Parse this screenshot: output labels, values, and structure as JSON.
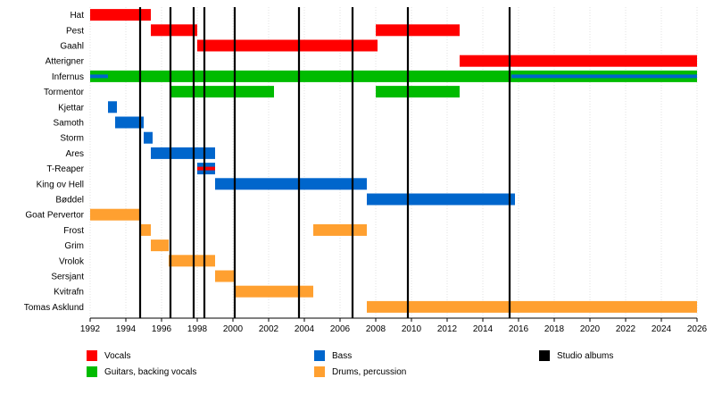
{
  "chart_data": {
    "type": "timeline",
    "x_range": [
      1992,
      2026
    ],
    "x_ticks": [
      1992,
      1994,
      1996,
      1998,
      2000,
      2002,
      2004,
      2006,
      2008,
      2010,
      2012,
      2014,
      2016,
      2018,
      2020,
      2022,
      2024,
      2026
    ],
    "colors": {
      "vocals": "#ff0000",
      "guitars": "#00bb00",
      "bass": "#0066cc",
      "drums": "#ffa030",
      "albums": "#000000"
    },
    "members": [
      {
        "name": "Hat",
        "periods": [
          {
            "role": "vocals",
            "start": 1992.0,
            "end": 1995.4
          }
        ]
      },
      {
        "name": "Pest",
        "periods": [
          {
            "role": "vocals",
            "start": 1995.4,
            "end": 1998.0
          },
          {
            "role": "vocals",
            "start": 2008.0,
            "end": 2012.7
          }
        ]
      },
      {
        "name": "Gaahl",
        "periods": [
          {
            "role": "vocals",
            "start": 1998.0,
            "end": 2008.1
          }
        ]
      },
      {
        "name": "Atterigner",
        "periods": [
          {
            "role": "vocals",
            "start": 2012.7,
            "end": 2026.0
          }
        ]
      },
      {
        "name": "Infernus",
        "periods": [
          {
            "role": "guitars",
            "start": 1992.0,
            "end": 2026.0
          }
        ],
        "overlays": [
          {
            "role": "bass",
            "start": 1992.0,
            "end": 1993.0
          },
          {
            "role": "bass",
            "start": 2015.6,
            "end": 2026.0
          }
        ]
      },
      {
        "name": "Tormentor",
        "periods": [
          {
            "role": "guitars",
            "start": 1996.5,
            "end": 2002.3
          },
          {
            "role": "guitars",
            "start": 2008.0,
            "end": 2012.7
          }
        ]
      },
      {
        "name": "Kjettar",
        "periods": [
          {
            "role": "bass",
            "start": 1993.0,
            "end": 1993.5
          }
        ]
      },
      {
        "name": "Samoth",
        "periods": [
          {
            "role": "bass",
            "start": 1993.4,
            "end": 1995.0
          }
        ]
      },
      {
        "name": "Storm",
        "periods": [
          {
            "role": "bass",
            "start": 1995.0,
            "end": 1995.5
          }
        ]
      },
      {
        "name": "Ares",
        "periods": [
          {
            "role": "bass",
            "start": 1995.4,
            "end": 1999.0
          }
        ]
      },
      {
        "name": "T-Reaper",
        "periods": [
          {
            "role": "bass",
            "start": 1998.0,
            "end": 1999.0
          }
        ],
        "overlays": [
          {
            "role": "vocals",
            "start": 1998.0,
            "end": 1999.0
          }
        ]
      },
      {
        "name": "King ov Hell",
        "periods": [
          {
            "role": "bass",
            "start": 1999.0,
            "end": 2007.5
          }
        ]
      },
      {
        "name": "Bøddel",
        "periods": [
          {
            "role": "bass",
            "start": 2007.5,
            "end": 2015.8
          }
        ]
      },
      {
        "name": "Goat Pervertor",
        "periods": [
          {
            "role": "drums",
            "start": 1992.0,
            "end": 1994.8
          }
        ]
      },
      {
        "name": "Frost",
        "periods": [
          {
            "role": "drums",
            "start": 1994.8,
            "end": 1995.4
          },
          {
            "role": "drums",
            "start": 2004.5,
            "end": 2007.5
          }
        ]
      },
      {
        "name": "Grim",
        "periods": [
          {
            "role": "drums",
            "start": 1995.4,
            "end": 1996.4
          }
        ]
      },
      {
        "name": "Vrolok",
        "periods": [
          {
            "role": "drums",
            "start": 1996.4,
            "end": 1999.0
          }
        ]
      },
      {
        "name": "Sersjant",
        "periods": [
          {
            "role": "drums",
            "start": 1999.0,
            "end": 2000.1
          }
        ]
      },
      {
        "name": "Kvitrafn",
        "periods": [
          {
            "role": "drums",
            "start": 2000.1,
            "end": 2004.5
          }
        ]
      },
      {
        "name": "Tomas Asklund",
        "periods": [
          {
            "role": "drums",
            "start": 2007.5,
            "end": 2026.0
          }
        ]
      }
    ],
    "albums": [
      1994.8,
      1996.5,
      1997.8,
      1998.4,
      2000.1,
      2003.7,
      2006.7,
      2009.8,
      2015.5
    ],
    "legend": [
      {
        "role": "vocals",
        "label": "Vocals"
      },
      {
        "role": "guitars",
        "label": "Guitars, backing vocals"
      },
      {
        "role": "bass",
        "label": "Bass"
      },
      {
        "role": "drums",
        "label": "Drums, percussion"
      },
      {
        "role": "albums",
        "label": "Studio albums"
      }
    ]
  }
}
